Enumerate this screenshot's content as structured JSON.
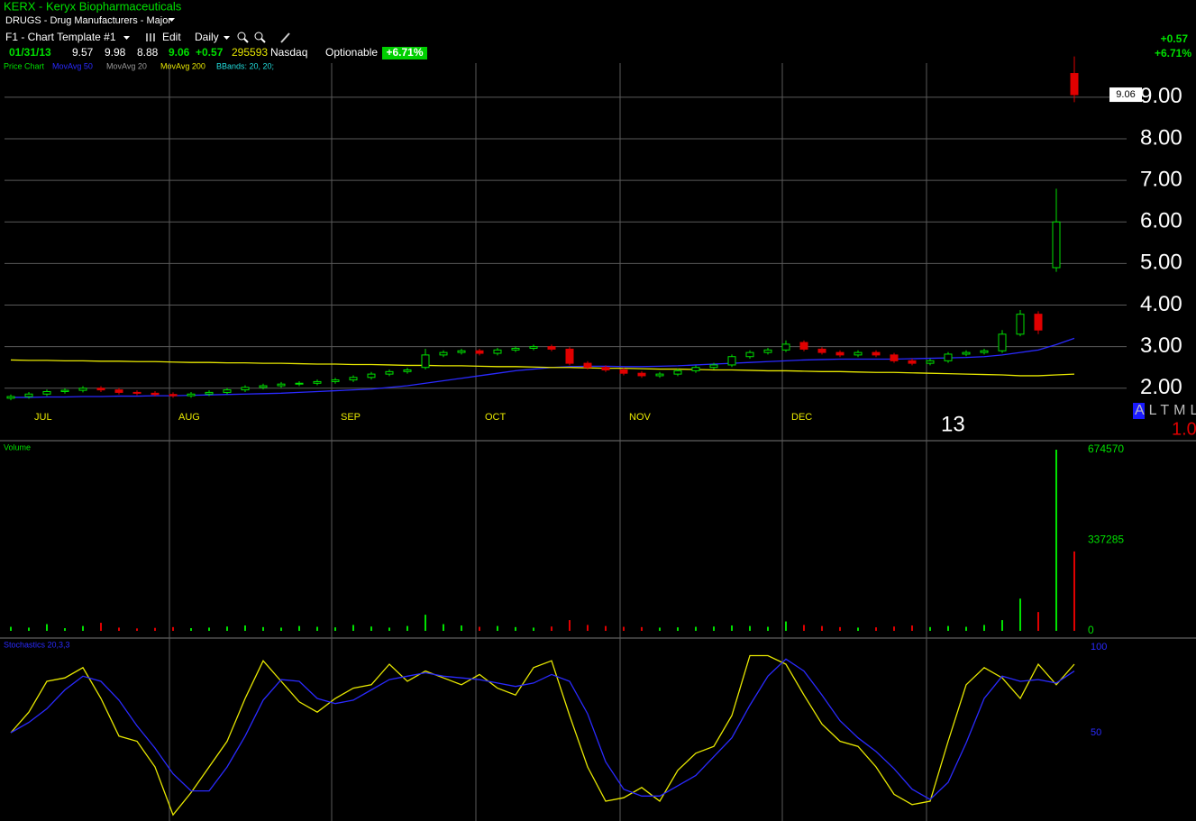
{
  "header": {
    "symbol": "KERX - Keryx Biopharmaceuticals",
    "industry": "DRUGS - Drug Manufacturers - Major",
    "template": "F1 - Chart Template #1",
    "edit": "Edit",
    "period": "Daily",
    "quote": {
      "date": "01/31/13",
      "open": "9.57",
      "high": "9.98",
      "low": "8.88",
      "last": "9.06",
      "change": "+0.57",
      "volume": "295593",
      "exchange": "Nasdaq",
      "optionable": "Optionable",
      "percent": "+6.71%"
    },
    "corner_change": "+0.57",
    "corner_percent": "+6.71%",
    "study_labels": {
      "price": "Price Chart",
      "ma20": "MovAvg 20",
      "bbands": "BBands: 20, 20;"
    },
    "alert": "ALTML",
    "ratio": "1.0"
  },
  "chart_data": [
    {
      "type": "candlestick",
      "categories": [
        null,
        "JUL",
        null,
        null,
        null,
        null,
        null,
        null,
        null,
        "AUG",
        null,
        null,
        null,
        null,
        null,
        null,
        null,
        null,
        "SEP",
        null,
        null,
        null,
        null,
        null,
        null,
        null,
        "OCT",
        null,
        null,
        null,
        null,
        null,
        null,
        null,
        "NOV",
        null,
        null,
        null,
        null,
        null,
        null,
        null,
        null,
        "DEC",
        null,
        null,
        null,
        null,
        null,
        null,
        null,
        "13",
        null,
        null,
        null,
        null,
        null,
        null,
        null,
        null
      ],
      "open": [
        1.76,
        1.8,
        1.86,
        1.92,
        1.95,
        2.0,
        1.96,
        1.9,
        1.88,
        1.85,
        1.82,
        1.86,
        1.9,
        1.96,
        2.02,
        2.06,
        2.1,
        2.12,
        2.16,
        2.2,
        2.26,
        2.34,
        2.4,
        2.5,
        2.8,
        2.86,
        2.9,
        2.84,
        2.92,
        2.96,
        3.0,
        2.94,
        2.6,
        2.5,
        2.44,
        2.36,
        2.3,
        2.34,
        2.42,
        2.5,
        2.56,
        2.76,
        2.86,
        2.92,
        3.1,
        2.94,
        2.86,
        2.8,
        2.86,
        2.8,
        2.66,
        2.6,
        2.66,
        2.82,
        2.86,
        2.9,
        3.3,
        3.78,
        4.9,
        9.57
      ],
      "high": [
        1.85,
        1.91,
        1.97,
        2.0,
        2.05,
        2.05,
        2.01,
        1.95,
        1.93,
        1.9,
        1.91,
        1.95,
        2.01,
        2.07,
        2.11,
        2.15,
        2.17,
        2.21,
        2.25,
        2.31,
        2.39,
        2.45,
        2.49,
        2.95,
        2.91,
        2.95,
        2.95,
        2.97,
        3.01,
        3.05,
        3.05,
        2.99,
        2.65,
        2.55,
        2.49,
        2.41,
        2.39,
        2.47,
        2.55,
        2.61,
        2.81,
        2.91,
        2.97,
        3.15,
        3.15,
        2.99,
        2.91,
        2.91,
        2.91,
        2.85,
        2.71,
        2.71,
        2.87,
        2.91,
        2.95,
        3.4,
        3.88,
        3.85,
        6.8,
        9.98
      ],
      "low": [
        1.71,
        1.75,
        1.81,
        1.87,
        1.9,
        1.91,
        1.85,
        1.83,
        1.8,
        1.77,
        1.77,
        1.81,
        1.85,
        1.91,
        1.97,
        2.01,
        2.05,
        2.07,
        2.11,
        2.15,
        2.21,
        2.29,
        2.35,
        2.45,
        2.75,
        2.81,
        2.79,
        2.79,
        2.87,
        2.91,
        2.89,
        2.55,
        2.45,
        2.39,
        2.31,
        2.25,
        2.25,
        2.29,
        2.37,
        2.45,
        2.51,
        2.71,
        2.81,
        2.87,
        2.89,
        2.81,
        2.75,
        2.75,
        2.75,
        2.61,
        2.55,
        2.55,
        2.61,
        2.77,
        2.81,
        2.85,
        3.25,
        3.3,
        4.8,
        8.88
      ],
      "close": [
        1.8,
        1.86,
        1.92,
        1.95,
        2.0,
        1.96,
        1.9,
        1.88,
        1.85,
        1.82,
        1.86,
        1.9,
        1.96,
        2.02,
        2.06,
        2.1,
        2.12,
        2.16,
        2.2,
        2.26,
        2.34,
        2.4,
        2.44,
        2.8,
        2.86,
        2.9,
        2.84,
        2.92,
        2.96,
        3.0,
        2.94,
        2.6,
        2.5,
        2.44,
        2.36,
        2.3,
        2.34,
        2.42,
        2.5,
        2.56,
        2.76,
        2.86,
        2.92,
        3.06,
        2.94,
        2.86,
        2.8,
        2.86,
        2.8,
        2.66,
        2.6,
        2.66,
        2.82,
        2.86,
        2.9,
        3.3,
        3.78,
        3.4,
        6.0,
        9.06
      ],
      "up_color": "#00e000",
      "down_color": "#e00000",
      "series": [
        {
          "name": "MovAvg 50",
          "color": "#2a2aff",
          "values": [
            1.78,
            1.78,
            1.79,
            1.79,
            1.8,
            1.8,
            1.81,
            1.81,
            1.82,
            1.82,
            1.83,
            1.84,
            1.85,
            1.86,
            1.87,
            1.88,
            1.9,
            1.92,
            1.94,
            1.96,
            1.98,
            2.02,
            2.06,
            2.12,
            2.18,
            2.24,
            2.3,
            2.36,
            2.42,
            2.46,
            2.5,
            2.52,
            2.53,
            2.53,
            2.52,
            2.52,
            2.53,
            2.54,
            2.56,
            2.58,
            2.6,
            2.62,
            2.64,
            2.66,
            2.68,
            2.69,
            2.7,
            2.7,
            2.7,
            2.7,
            2.71,
            2.72,
            2.73,
            2.74,
            2.76,
            2.8,
            2.86,
            2.92,
            3.05,
            3.2
          ]
        },
        {
          "name": "MovAvg 200",
          "color": "#e8e800",
          "values": [
            2.68,
            2.67,
            2.67,
            2.66,
            2.66,
            2.65,
            2.65,
            2.64,
            2.64,
            2.63,
            2.62,
            2.62,
            2.61,
            2.61,
            2.6,
            2.6,
            2.59,
            2.58,
            2.58,
            2.57,
            2.57,
            2.56,
            2.55,
            2.55,
            2.54,
            2.54,
            2.53,
            2.52,
            2.52,
            2.51,
            2.5,
            2.5,
            2.49,
            2.48,
            2.48,
            2.47,
            2.46,
            2.46,
            2.45,
            2.44,
            2.44,
            2.43,
            2.42,
            2.42,
            2.41,
            2.4,
            2.4,
            2.39,
            2.38,
            2.38,
            2.37,
            2.36,
            2.35,
            2.34,
            2.33,
            2.32,
            2.3,
            2.3,
            2.32,
            2.34
          ]
        }
      ],
      "last_price": 9.06,
      "ylim": [
        0.76,
        9.82
      ],
      "yticks": [
        {
          "value": 2,
          "label": "2.00"
        },
        {
          "value": 3,
          "label": "3.00"
        },
        {
          "value": 4,
          "label": "4.00"
        },
        {
          "value": 5,
          "label": "5.00"
        },
        {
          "value": 6,
          "label": "6.00"
        },
        {
          "value": 7,
          "label": "7.00"
        },
        {
          "value": 8,
          "label": "8.00"
        },
        {
          "value": 9,
          "label": "9.00"
        }
      ],
      "grid": true
    },
    {
      "type": "bar",
      "title": "Volume",
      "values": [
        15000,
        12000,
        25000,
        10000,
        18000,
        30000,
        12000,
        9000,
        11000,
        14000,
        10000,
        12000,
        16000,
        20000,
        14000,
        12000,
        18000,
        15000,
        13000,
        22000,
        16000,
        12000,
        18000,
        60000,
        25000,
        20000,
        15000,
        18000,
        14000,
        12000,
        16000,
        40000,
        22000,
        18000,
        15000,
        14000,
        12000,
        13000,
        15000,
        16000,
        20000,
        18000,
        15000,
        35000,
        22000,
        18000,
        14000,
        12000,
        13000,
        16000,
        20000,
        14000,
        18000,
        15000,
        22000,
        40000,
        120000,
        70000,
        674570,
        295593
      ],
      "ylim": [
        0,
        674570
      ],
      "yticks": [
        0,
        337285,
        674570
      ],
      "grid": false
    },
    {
      "type": "line",
      "title": "Stochastics 20,3,3",
      "series": [
        {
          "color": "#e8e800",
          "values": [
            50,
            62,
            80,
            82,
            88,
            70,
            48,
            45,
            30,
            2,
            15,
            30,
            45,
            70,
            92,
            80,
            68,
            62,
            70,
            76,
            78,
            90,
            80,
            86,
            82,
            78,
            84,
            76,
            72,
            88,
            92,
            60,
            30,
            10,
            12,
            18,
            10,
            28,
            38,
            42,
            60,
            95,
            95,
            90,
            72,
            55,
            45,
            42,
            30,
            14,
            8,
            10,
            45,
            78,
            88,
            82,
            70,
            90,
            78,
            90
          ]
        },
        {
          "color": "#2a2aff",
          "values": [
            50,
            56,
            64,
            75,
            83,
            80,
            69,
            54,
            41,
            26,
            16,
            16,
            30,
            48,
            69,
            81,
            80,
            70,
            67,
            69,
            75,
            81,
            83,
            85,
            83,
            82,
            81,
            79,
            77,
            79,
            84,
            80,
            61,
            33,
            17,
            13,
            13,
            19,
            25,
            36,
            47,
            66,
            83,
            93,
            86,
            72,
            57,
            47,
            39,
            29,
            17,
            11,
            21,
            44,
            70,
            83,
            80,
            81,
            79,
            86
          ]
        }
      ],
      "ylim": [
        0,
        100
      ],
      "yticks": [
        50,
        100
      ],
      "grid": false
    }
  ]
}
